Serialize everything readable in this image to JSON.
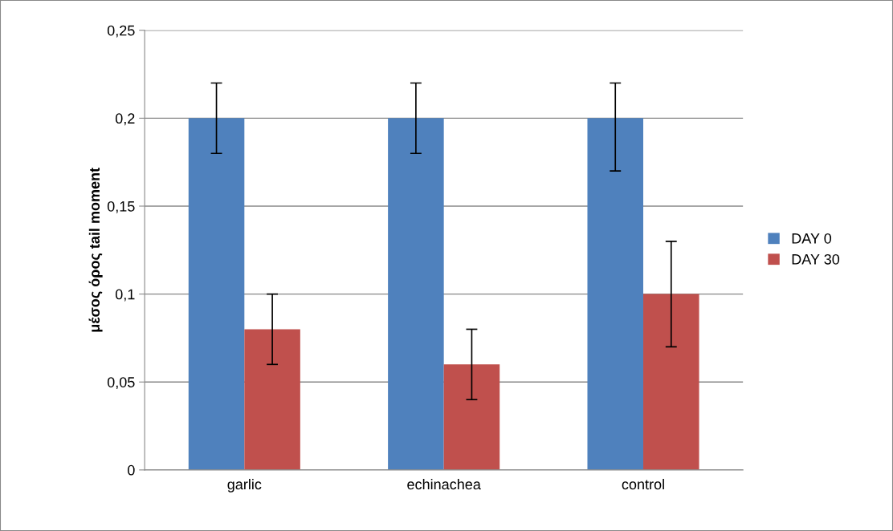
{
  "chart_data": {
    "type": "bar",
    "ylabel": "μέσος όρος tail moment",
    "categories": [
      "garlic",
      "echinachea",
      "control"
    ],
    "series": [
      {
        "name": "DAY 0",
        "color": "#4f81bd",
        "values": [
          0.2,
          0.2,
          0.2
        ],
        "errors": [
          0.02,
          0.02,
          [
            0.17,
            0.22
          ]
        ]
      },
      {
        "name": "DAY 30",
        "color": "#c0504d",
        "values": [
          0.08,
          0.06,
          0.1
        ],
        "errors": [
          0.02,
          0.02,
          0.03
        ]
      }
    ],
    "ylim": [
      0,
      0.25
    ],
    "yticks": [
      {
        "value": 0,
        "label": "0"
      },
      {
        "value": 0.05,
        "label": "0,05"
      },
      {
        "value": 0.1,
        "label": "0,1"
      },
      {
        "value": 0.15,
        "label": "0,15"
      },
      {
        "value": 0.2,
        "label": "0,2"
      },
      {
        "value": 0.25,
        "label": "0,25"
      }
    ],
    "grid": "y",
    "legend": "right"
  }
}
